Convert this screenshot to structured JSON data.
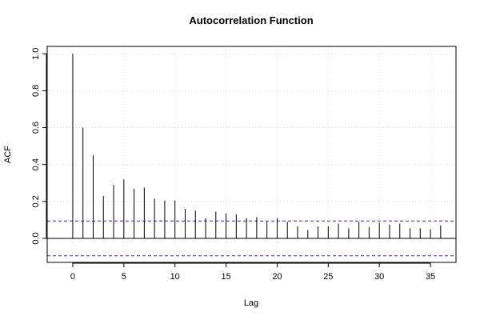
{
  "chart_data": {
    "type": "bar",
    "title": "Autocorrelation Function",
    "xlabel": "Lag",
    "ylabel": "ACF",
    "xlim": [
      -2.5,
      37.5
    ],
    "ylim": [
      -0.13,
      1.04
    ],
    "x_ticks": [
      0,
      5,
      10,
      15,
      20,
      25,
      30,
      35
    ],
    "x_tick_labels": [
      "0",
      "5",
      "10",
      "15",
      "20",
      "25",
      "30",
      "35"
    ],
    "y_ticks": [
      0.0,
      0.2,
      0.4,
      0.6,
      0.8,
      1.0
    ],
    "y_tick_labels": [
      "0.0",
      "0.2",
      "0.4",
      "0.6",
      "0.8",
      "1.0"
    ],
    "grid": true,
    "lags": [
      0,
      1,
      2,
      3,
      4,
      5,
      6,
      7,
      8,
      9,
      10,
      11,
      12,
      13,
      14,
      15,
      16,
      17,
      18,
      19,
      20,
      21,
      22,
      23,
      24,
      25,
      26,
      27,
      28,
      29,
      30,
      31,
      32,
      33,
      34,
      35,
      36
    ],
    "values": [
      1.0,
      0.6,
      0.45,
      0.23,
      0.29,
      0.32,
      0.27,
      0.275,
      0.215,
      0.205,
      0.205,
      0.16,
      0.15,
      0.11,
      0.145,
      0.135,
      0.13,
      0.11,
      0.115,
      0.09,
      0.11,
      0.09,
      0.065,
      0.045,
      0.065,
      0.065,
      0.08,
      0.055,
      0.09,
      0.06,
      0.085,
      0.075,
      0.08,
      0.055,
      0.055,
      0.05,
      0.07
    ],
    "confidence_bounds": [
      0.094,
      -0.094
    ],
    "colors": {
      "bars": "#000000",
      "confidence": "#2b2bbd",
      "grid": "#d3d3d3",
      "zero_line": "#000000"
    }
  }
}
